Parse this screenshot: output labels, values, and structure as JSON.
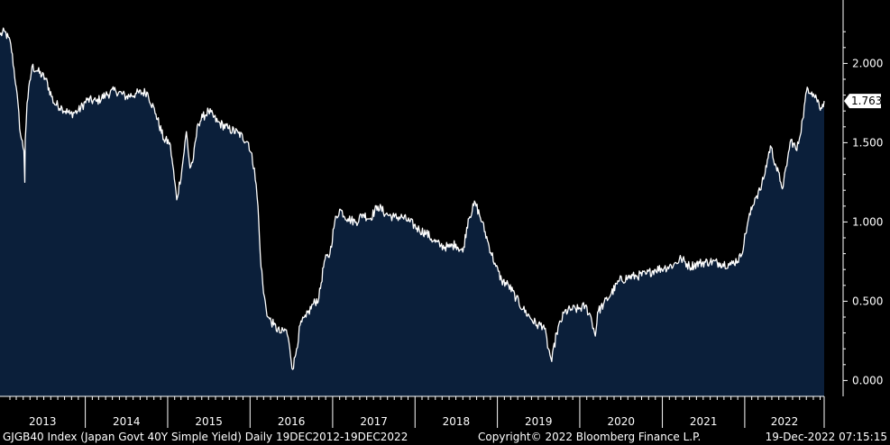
{
  "footer": {
    "left": "GJGB40 Index (Japan Govt 40Y Simple Yield)  Daily 19DEC2012-19DEC2022",
    "center": "Copyright© 2022 Bloomberg Finance L.P.",
    "right": "19-Dec-2022 07:15:15"
  },
  "colors": {
    "background": "#000000",
    "area_fill": "#0b1f3a",
    "line": "#ffffff",
    "axis": "#ffffff",
    "grid": "#4a4a4a"
  },
  "chart_data": {
    "type": "area",
    "title": "",
    "xlabel": "",
    "ylabel": "",
    "xlim": [
      "2012-12-19",
      "2022-12-19"
    ],
    "ylim": [
      -0.1,
      2.4
    ],
    "y_ticks": [
      0.0,
      0.5,
      1.0,
      1.5,
      2.0
    ],
    "y_tick_labels": [
      "0.000",
      "0.500",
      "1.000",
      "1.500",
      "2.000"
    ],
    "x_tick_labels": [
      "2013",
      "2014",
      "2015",
      "2016",
      "2017",
      "2018",
      "2019",
      "2020",
      "2021",
      "2022"
    ],
    "grid": false,
    "last_value": 1.763,
    "last_value_label": "1.763",
    "series": [
      {
        "x": [
          "2012-12-19",
          "2013-01-10",
          "2013-02-05",
          "2013-03-01",
          "2013-03-20",
          "2013-04-04",
          "2013-04-08",
          "2013-04-10",
          "2013-04-18",
          "2013-05-10",
          "2013-06-05",
          "2013-07-10",
          "2013-08-15",
          "2013-09-20",
          "2013-10-25",
          "2013-12-01",
          "2014-01-10",
          "2014-02-20",
          "2014-04-01",
          "2014-05-15",
          "2014-07-01",
          "2014-08-15",
          "2014-10-01",
          "2014-11-10",
          "2014-12-15",
          "2015-01-10",
          "2015-01-20",
          "2015-02-10",
          "2015-03-05",
          "2015-03-25",
          "2015-04-10",
          "2015-04-25",
          "2015-05-15",
          "2015-06-05",
          "2015-07-01",
          "2015-08-10",
          "2015-09-25",
          "2015-11-10",
          "2015-12-25",
          "2016-01-20",
          "2016-02-05",
          "2016-02-15",
          "2016-03-01",
          "2016-03-20",
          "2016-04-15",
          "2016-05-15",
          "2016-06-10",
          "2016-06-25",
          "2016-07-08",
          "2016-07-25",
          "2016-08-10",
          "2016-09-05",
          "2016-10-05",
          "2016-11-01",
          "2016-11-25",
          "2016-12-20",
          "2017-01-10",
          "2017-02-01",
          "2017-03-10",
          "2017-04-15",
          "2017-05-15",
          "2017-06-15",
          "2017-07-20",
          "2017-08-25",
          "2017-10-01",
          "2017-11-05",
          "2017-12-10",
          "2018-01-20",
          "2018-02-20",
          "2018-03-25",
          "2018-04-25",
          "2018-06-01",
          "2018-07-01",
          "2018-08-01",
          "2018-08-25",
          "2018-09-25",
          "2018-10-25",
          "2018-11-25",
          "2018-12-25",
          "2019-01-20",
          "2019-02-20",
          "2019-03-25",
          "2019-04-25",
          "2019-05-25",
          "2019-06-25",
          "2019-07-25",
          "2019-08-15",
          "2019-08-30",
          "2019-09-20",
          "2019-10-25",
          "2019-11-25",
          "2019-12-25",
          "2020-01-25",
          "2020-02-20",
          "2020-03-10",
          "2020-03-20",
          "2020-04-15",
          "2020-05-20",
          "2020-06-25",
          "2020-08-01",
          "2020-09-10",
          "2020-10-20",
          "2020-12-01",
          "2021-01-10",
          "2021-02-20",
          "2021-03-25",
          "2021-05-01",
          "2021-06-15",
          "2021-08-01",
          "2021-09-15",
          "2021-11-01",
          "2021-12-15",
          "2022-01-15",
          "2022-02-15",
          "2022-03-10",
          "2022-03-25",
          "2022-04-25",
          "2022-05-20",
          "2022-06-10",
          "2022-06-20",
          "2022-07-10",
          "2022-07-25",
          "2022-08-20",
          "2022-09-15",
          "2022-10-05",
          "2022-10-25",
          "2022-11-15",
          "2022-12-05",
          "2022-12-19"
        ],
        "y": [
          2.18,
          2.2,
          2.12,
          1.85,
          1.55,
          1.45,
          1.25,
          1.52,
          1.75,
          1.98,
          1.95,
          1.9,
          1.75,
          1.72,
          1.68,
          1.7,
          1.77,
          1.76,
          1.8,
          1.83,
          1.79,
          1.81,
          1.82,
          1.68,
          1.52,
          1.5,
          1.4,
          1.14,
          1.33,
          1.57,
          1.34,
          1.4,
          1.62,
          1.66,
          1.7,
          1.63,
          1.59,
          1.56,
          1.5,
          1.34,
          1.1,
          0.8,
          0.55,
          0.4,
          0.35,
          0.3,
          0.32,
          0.2,
          0.07,
          0.2,
          0.35,
          0.4,
          0.48,
          0.52,
          0.75,
          0.8,
          1.0,
          1.08,
          1.02,
          1.0,
          1.05,
          1.02,
          1.1,
          1.05,
          1.03,
          1.03,
          1.0,
          0.95,
          0.93,
          0.88,
          0.85,
          0.84,
          0.86,
          0.81,
          1.02,
          1.12,
          1.0,
          0.85,
          0.72,
          0.63,
          0.6,
          0.52,
          0.45,
          0.4,
          0.35,
          0.35,
          0.2,
          0.12,
          0.3,
          0.43,
          0.45,
          0.45,
          0.47,
          0.4,
          0.28,
          0.43,
          0.48,
          0.55,
          0.63,
          0.65,
          0.66,
          0.67,
          0.7,
          0.71,
          0.73,
          0.77,
          0.72,
          0.74,
          0.75,
          0.74,
          0.73,
          0.78,
          1.0,
          1.15,
          1.2,
          1.27,
          1.48,
          1.35,
          1.25,
          1.22,
          1.4,
          1.52,
          1.45,
          1.65,
          1.85,
          1.82,
          1.78,
          1.72,
          1.763
        ]
      }
    ]
  }
}
